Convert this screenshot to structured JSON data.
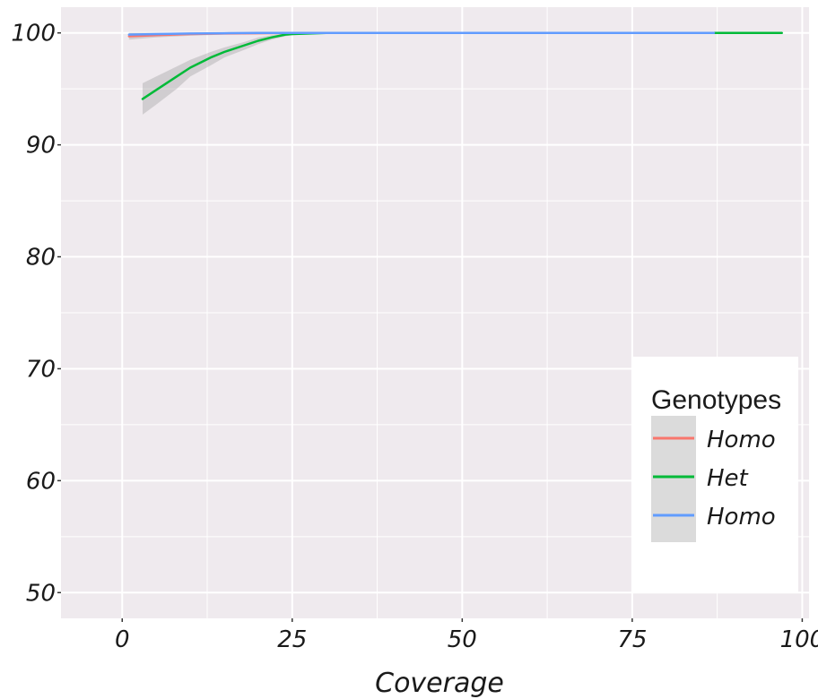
{
  "chart_data": {
    "type": "line",
    "title": "",
    "xlabel": "Coverage",
    "ylabel": "",
    "xlim": [
      -9,
      101
    ],
    "ylim": [
      47.7,
      102.3
    ],
    "x_ticks": [
      0,
      25,
      50,
      75,
      100
    ],
    "x_tick_labels": [
      "0",
      "25",
      "50",
      "75",
      "100"
    ],
    "y_ticks": [
      50,
      60,
      70,
      80,
      90,
      100
    ],
    "y_tick_labels": [
      "50",
      "60",
      "70",
      "80",
      "90",
      "100"
    ],
    "grid": true,
    "legend": {
      "title": "Genotypes",
      "position": "bottom-right",
      "entries": [
        "Homo",
        "Het",
        "Homo"
      ]
    },
    "series": [
      {
        "name": "Homo",
        "color": "#F8766D",
        "x": [
          1,
          5,
          10,
          15,
          20,
          25,
          30,
          40,
          50,
          60,
          70,
          80,
          87
        ],
        "y": [
          99.7,
          99.8,
          99.9,
          99.95,
          99.97,
          100,
          100,
          100,
          100,
          100,
          100,
          100,
          100
        ],
        "band_low": [
          99.4,
          99.6,
          99.75,
          99.85,
          99.9,
          99.95,
          99.97,
          99.97,
          99.97,
          99.97,
          99.97,
          99.97,
          99.97
        ],
        "band_high": [
          100,
          100,
          100,
          100,
          100,
          100,
          100.03,
          100.03,
          100.03,
          100.03,
          100.03,
          100.03,
          100.03
        ]
      },
      {
        "name": "Het",
        "color": "#00BA38",
        "x": [
          3,
          5,
          8,
          10,
          13,
          15,
          18,
          20,
          22,
          24,
          25,
          30,
          40,
          50,
          60,
          70,
          80,
          90,
          97
        ],
        "y": [
          94.1,
          94.9,
          96.1,
          96.9,
          97.8,
          98.3,
          98.9,
          99.3,
          99.6,
          99.85,
          99.9,
          100,
          100,
          100,
          100,
          100,
          100,
          100,
          100
        ],
        "band_low": [
          92.7,
          93.6,
          95.0,
          96.1,
          97.1,
          97.8,
          98.5,
          99.0,
          99.4,
          99.7,
          99.8,
          99.95,
          99.97,
          99.97,
          99.97,
          99.97,
          99.97,
          99.97,
          99.97
        ],
        "band_high": [
          95.5,
          96.1,
          97.0,
          97.6,
          98.3,
          98.7,
          99.2,
          99.6,
          99.8,
          99.95,
          100,
          100.05,
          100.03,
          100.03,
          100.03,
          100.03,
          100.03,
          100.03,
          100.03
        ]
      },
      {
        "name": "Homo",
        "color": "#619CFF",
        "x": [
          1,
          5,
          10,
          15,
          20,
          25,
          30,
          40,
          50,
          60,
          70,
          80,
          87
        ],
        "y": [
          99.85,
          99.9,
          99.95,
          99.97,
          100,
          100,
          100,
          100,
          100,
          100,
          100,
          100,
          100
        ],
        "band_low": [
          99.7,
          99.8,
          99.88,
          99.92,
          99.95,
          99.96,
          99.97,
          99.97,
          99.97,
          99.97,
          99.97,
          99.97,
          99.97
        ],
        "band_high": [
          100,
          100,
          100.02,
          100.02,
          100.03,
          100.03,
          100.03,
          100.03,
          100.03,
          100.03,
          100.03,
          100.03,
          100.03
        ]
      }
    ]
  }
}
